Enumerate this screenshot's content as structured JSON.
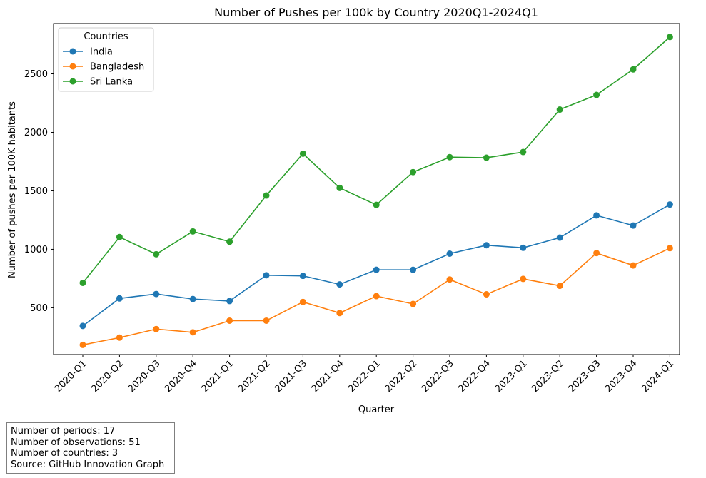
{
  "chart_data": {
    "type": "line",
    "title": "Number of Pushes per 100k by Country 2020Q1-2024Q1",
    "xlabel": "Quarter",
    "ylabel": "Number of pushes per 100K habitants",
    "ylim": [
      100,
      2930
    ],
    "y_ticks": [
      500,
      1000,
      1500,
      2000,
      2500
    ],
    "grid": false,
    "legend": {
      "title": "Countries",
      "placement": "top-left"
    },
    "categories": [
      "2020-Q1",
      "2020-Q2",
      "2020-Q3",
      "2020-Q4",
      "2021-Q1",
      "2021-Q2",
      "2021-Q3",
      "2021-Q4",
      "2022-Q1",
      "2022-Q2",
      "2022-Q3",
      "2022-Q4",
      "2023-Q1",
      "2023-Q2",
      "2023-Q3",
      "2023-Q4",
      "2024-Q1"
    ],
    "series": [
      {
        "name": "India",
        "color": "#1f77b4",
        "values": [
          345,
          580,
          618,
          575,
          558,
          778,
          773,
          700,
          825,
          825,
          963,
          1035,
          1013,
          1100,
          1290,
          1203,
          1383
        ]
      },
      {
        "name": "Bangladesh",
        "color": "#ff7f0e",
        "values": [
          183,
          245,
          318,
          290,
          390,
          390,
          550,
          455,
          600,
          533,
          742,
          615,
          747,
          688,
          968,
          862,
          1010
        ]
      },
      {
        "name": "Sri Lanka",
        "color": "#2ca02c",
        "values": [
          713,
          1105,
          958,
          1153,
          1065,
          1460,
          1818,
          1525,
          1380,
          1660,
          1788,
          1783,
          1832,
          2195,
          2320,
          2538,
          2815
        ]
      }
    ]
  },
  "info_box": {
    "lines": [
      "Number of periods: 17",
      "Number of observations: 51",
      "Number of countries: 3",
      "Source: GitHub Innovation Graph"
    ]
  }
}
